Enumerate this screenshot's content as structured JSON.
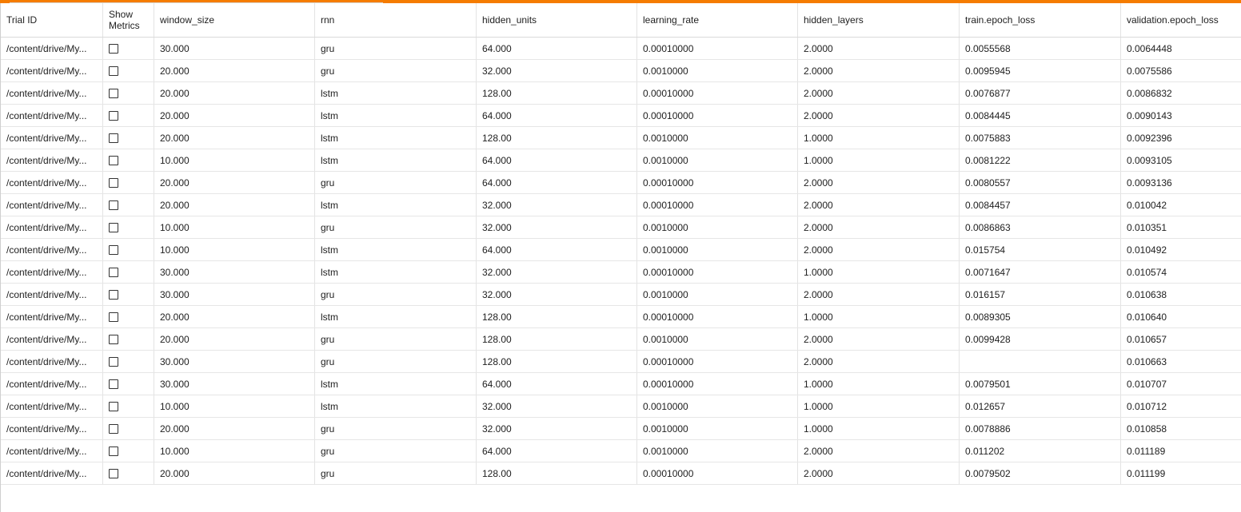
{
  "columns": {
    "trial_id": "Trial ID",
    "show_metrics": "Show Metrics",
    "window_size": "window_size",
    "rnn": "rnn",
    "hidden_units": "hidden_units",
    "learning_rate": "learning_rate",
    "hidden_layers": "hidden_layers",
    "train_epoch_loss": "train.epoch_loss",
    "validation_epoch_loss": "validation.epoch_loss"
  },
  "rows": [
    {
      "trial_id": "/content/drive/My...",
      "window_size": "30.000",
      "rnn": "gru",
      "hidden_units": "64.000",
      "learning_rate": "0.00010000",
      "hidden_layers": "2.0000",
      "train_epoch_loss": "0.0055568",
      "validation_epoch_loss": "0.0064448"
    },
    {
      "trial_id": "/content/drive/My...",
      "window_size": "20.000",
      "rnn": "gru",
      "hidden_units": "32.000",
      "learning_rate": "0.0010000",
      "hidden_layers": "2.0000",
      "train_epoch_loss": "0.0095945",
      "validation_epoch_loss": "0.0075586"
    },
    {
      "trial_id": "/content/drive/My...",
      "window_size": "20.000",
      "rnn": "lstm",
      "hidden_units": "128.00",
      "learning_rate": "0.00010000",
      "hidden_layers": "2.0000",
      "train_epoch_loss": "0.0076877",
      "validation_epoch_loss": "0.0086832"
    },
    {
      "trial_id": "/content/drive/My...",
      "window_size": "20.000",
      "rnn": "lstm",
      "hidden_units": "64.000",
      "learning_rate": "0.00010000",
      "hidden_layers": "2.0000",
      "train_epoch_loss": "0.0084445",
      "validation_epoch_loss": "0.0090143"
    },
    {
      "trial_id": "/content/drive/My...",
      "window_size": "20.000",
      "rnn": "lstm",
      "hidden_units": "128.00",
      "learning_rate": "0.0010000",
      "hidden_layers": "1.0000",
      "train_epoch_loss": "0.0075883",
      "validation_epoch_loss": "0.0092396"
    },
    {
      "trial_id": "/content/drive/My...",
      "window_size": "10.000",
      "rnn": "lstm",
      "hidden_units": "64.000",
      "learning_rate": "0.0010000",
      "hidden_layers": "1.0000",
      "train_epoch_loss": "0.0081222",
      "validation_epoch_loss": "0.0093105"
    },
    {
      "trial_id": "/content/drive/My...",
      "window_size": "20.000",
      "rnn": "gru",
      "hidden_units": "64.000",
      "learning_rate": "0.00010000",
      "hidden_layers": "2.0000",
      "train_epoch_loss": "0.0080557",
      "validation_epoch_loss": "0.0093136"
    },
    {
      "trial_id": "/content/drive/My...",
      "window_size": "20.000",
      "rnn": "lstm",
      "hidden_units": "32.000",
      "learning_rate": "0.00010000",
      "hidden_layers": "2.0000",
      "train_epoch_loss": "0.0084457",
      "validation_epoch_loss": "0.010042"
    },
    {
      "trial_id": "/content/drive/My...",
      "window_size": "10.000",
      "rnn": "gru",
      "hidden_units": "32.000",
      "learning_rate": "0.0010000",
      "hidden_layers": "2.0000",
      "train_epoch_loss": "0.0086863",
      "validation_epoch_loss": "0.010351"
    },
    {
      "trial_id": "/content/drive/My...",
      "window_size": "10.000",
      "rnn": "lstm",
      "hidden_units": "64.000",
      "learning_rate": "0.0010000",
      "hidden_layers": "2.0000",
      "train_epoch_loss": "0.015754",
      "validation_epoch_loss": "0.010492"
    },
    {
      "trial_id": "/content/drive/My...",
      "window_size": "30.000",
      "rnn": "lstm",
      "hidden_units": "32.000",
      "learning_rate": "0.00010000",
      "hidden_layers": "1.0000",
      "train_epoch_loss": "0.0071647",
      "validation_epoch_loss": "0.010574"
    },
    {
      "trial_id": "/content/drive/My...",
      "window_size": "30.000",
      "rnn": "gru",
      "hidden_units": "32.000",
      "learning_rate": "0.0010000",
      "hidden_layers": "2.0000",
      "train_epoch_loss": "0.016157",
      "validation_epoch_loss": "0.010638"
    },
    {
      "trial_id": "/content/drive/My...",
      "window_size": "20.000",
      "rnn": "lstm",
      "hidden_units": "128.00",
      "learning_rate": "0.00010000",
      "hidden_layers": "1.0000",
      "train_epoch_loss": "0.0089305",
      "validation_epoch_loss": "0.010640"
    },
    {
      "trial_id": "/content/drive/My...",
      "window_size": "20.000",
      "rnn": "gru",
      "hidden_units": "128.00",
      "learning_rate": "0.0010000",
      "hidden_layers": "2.0000",
      "train_epoch_loss": "0.0099428",
      "validation_epoch_loss": "0.010657"
    },
    {
      "trial_id": "/content/drive/My...",
      "window_size": "30.000",
      "rnn": "gru",
      "hidden_units": "128.00",
      "learning_rate": "0.00010000",
      "hidden_layers": "2.0000",
      "train_epoch_loss": "",
      "validation_epoch_loss": "0.010663"
    },
    {
      "trial_id": "/content/drive/My...",
      "window_size": "30.000",
      "rnn": "lstm",
      "hidden_units": "64.000",
      "learning_rate": "0.00010000",
      "hidden_layers": "1.0000",
      "train_epoch_loss": "0.0079501",
      "validation_epoch_loss": "0.010707"
    },
    {
      "trial_id": "/content/drive/My...",
      "window_size": "10.000",
      "rnn": "lstm",
      "hidden_units": "32.000",
      "learning_rate": "0.0010000",
      "hidden_layers": "1.0000",
      "train_epoch_loss": "0.012657",
      "validation_epoch_loss": "0.010712"
    },
    {
      "trial_id": "/content/drive/My...",
      "window_size": "20.000",
      "rnn": "gru",
      "hidden_units": "32.000",
      "learning_rate": "0.0010000",
      "hidden_layers": "1.0000",
      "train_epoch_loss": "0.0078886",
      "validation_epoch_loss": "0.010858"
    },
    {
      "trial_id": "/content/drive/My...",
      "window_size": "10.000",
      "rnn": "gru",
      "hidden_units": "64.000",
      "learning_rate": "0.0010000",
      "hidden_layers": "2.0000",
      "train_epoch_loss": "0.011202",
      "validation_epoch_loss": "0.011189"
    },
    {
      "trial_id": "/content/drive/My...",
      "window_size": "20.000",
      "rnn": "gru",
      "hidden_units": "128.00",
      "learning_rate": "0.00010000",
      "hidden_layers": "2.0000",
      "train_epoch_loss": "0.0079502",
      "validation_epoch_loss": "0.011199"
    }
  ],
  "colors": {
    "accent": "#f57c00",
    "grid_line": "#e6e6e6",
    "text": "#212121"
  }
}
